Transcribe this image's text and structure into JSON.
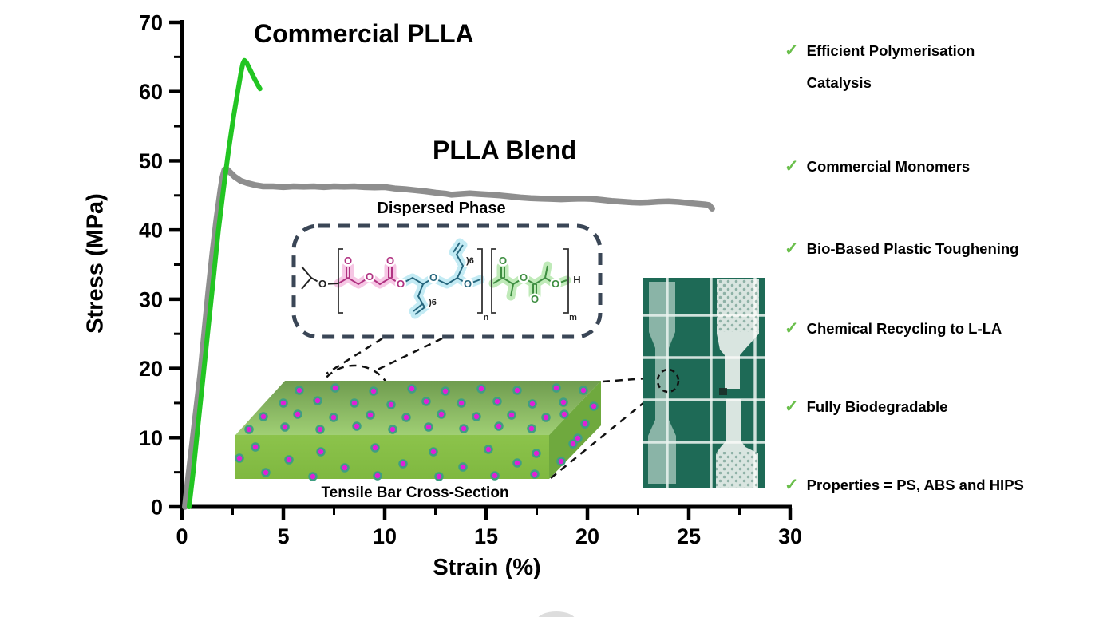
{
  "chart_data": {
    "type": "line",
    "title": "",
    "xlabel": "Strain (%)",
    "ylabel": "Stress (MPa)",
    "xlim": [
      0,
      30
    ],
    "ylim": [
      0,
      70
    ],
    "x_ticks": [
      0,
      5,
      10,
      15,
      20,
      25,
      30
    ],
    "y_ticks": [
      0,
      10,
      20,
      30,
      40,
      50,
      60,
      70
    ],
    "x_minor_step": 2.5,
    "y_minor_step": 5,
    "grid": false,
    "legend_position": "annotations-inside-plot",
    "series": [
      {
        "name": "Commercial PLLA",
        "color": "#22c522",
        "points": [
          [
            0.35,
            0
          ],
          [
            0.55,
            5
          ],
          [
            0.8,
            12
          ],
          [
            1.05,
            19
          ],
          [
            1.3,
            26
          ],
          [
            1.55,
            33
          ],
          [
            1.8,
            40
          ],
          [
            2.05,
            46
          ],
          [
            2.3,
            51.5
          ],
          [
            2.55,
            56.5
          ],
          [
            2.75,
            60
          ],
          [
            2.9,
            62.6
          ],
          [
            3.0,
            64.0
          ],
          [
            3.08,
            64.5
          ],
          [
            3.18,
            64.2
          ],
          [
            3.35,
            63.2
          ],
          [
            3.55,
            62.0
          ],
          [
            3.75,
            60.9
          ],
          [
            3.85,
            60.4
          ]
        ]
      },
      {
        "name": "PLLA Blend",
        "color": "#8e8e8e",
        "points": [
          [
            0.15,
            0
          ],
          [
            0.3,
            4
          ],
          [
            0.5,
            9
          ],
          [
            0.7,
            14
          ],
          [
            0.9,
            19
          ],
          [
            1.1,
            25
          ],
          [
            1.3,
            31
          ],
          [
            1.5,
            36.5
          ],
          [
            1.7,
            41.5
          ],
          [
            1.9,
            45.8
          ],
          [
            2.0,
            47.6
          ],
          [
            2.1,
            48.7
          ],
          [
            2.2,
            48.8
          ],
          [
            2.35,
            48.4
          ],
          [
            2.6,
            47.7
          ],
          [
            2.9,
            47.1
          ],
          [
            3.2,
            46.8
          ],
          [
            3.6,
            46.5
          ],
          [
            4.0,
            46.3
          ],
          [
            4.5,
            46.3
          ],
          [
            5.0,
            46.2
          ],
          [
            5.5,
            46.3
          ],
          [
            6.0,
            46.25
          ],
          [
            6.5,
            46.3
          ],
          [
            7.0,
            46.2
          ],
          [
            7.5,
            46.3
          ],
          [
            8.0,
            46.25
          ],
          [
            8.5,
            46.3
          ],
          [
            9.0,
            46.2
          ],
          [
            9.5,
            46.15
          ],
          [
            10.0,
            46.2
          ],
          [
            10.5,
            46.0
          ],
          [
            11.0,
            45.9
          ],
          [
            11.5,
            45.75
          ],
          [
            12.0,
            45.6
          ],
          [
            12.5,
            45.4
          ],
          [
            13.0,
            45.25
          ],
          [
            13.3,
            45.1
          ],
          [
            13.7,
            45.2
          ],
          [
            14.2,
            45.3
          ],
          [
            14.7,
            45.2
          ],
          [
            15.2,
            45.1
          ],
          [
            15.7,
            45.0
          ],
          [
            16.2,
            44.85
          ],
          [
            16.7,
            44.7
          ],
          [
            17.2,
            44.6
          ],
          [
            17.7,
            44.55
          ],
          [
            18.2,
            44.5
          ],
          [
            18.7,
            44.45
          ],
          [
            19.2,
            44.5
          ],
          [
            19.7,
            44.55
          ],
          [
            20.2,
            44.5
          ],
          [
            20.7,
            44.35
          ],
          [
            21.2,
            44.2
          ],
          [
            21.7,
            44.1
          ],
          [
            22.2,
            44.0
          ],
          [
            22.6,
            43.95
          ],
          [
            23.0,
            44.0
          ],
          [
            23.5,
            44.1
          ],
          [
            24.0,
            44.15
          ],
          [
            24.5,
            44.05
          ],
          [
            25.0,
            43.9
          ],
          [
            25.4,
            43.8
          ],
          [
            25.8,
            43.7
          ],
          [
            26.0,
            43.6
          ],
          [
            26.15,
            43.1
          ]
        ]
      }
    ]
  },
  "inset": {
    "title": "Dispersed Phase",
    "o": "O",
    "h": "H",
    "n": "n",
    "m": "m",
    "chain_sub": ")6",
    "colors": {
      "pink_highlight": "#f6c3e3",
      "cyan_highlight": "#c0eaf3",
      "green_highlight": "#bce9b4"
    }
  },
  "block_caption": "Tensile Bar Cross-Section",
  "illustration": {
    "dot_color": "#e01fd8",
    "dot_ring": "#3f9e82",
    "block_top_dark": "#6f9c4f",
    "block_top_light": "#a0cf74",
    "block_front": "#86bf45",
    "block_side": "#6fa93e",
    "mat_color": "#1e6a56"
  },
  "checklist": {
    "check": "✓",
    "check_color": "#6abf4b",
    "items": [
      {
        "text": "Efficient Polymerisation Catalysis"
      },
      {
        "text": "Commercial Monomers"
      },
      {
        "text": "Bio-Based Plastic Toughening"
      },
      {
        "text": "Chemical Recycling to L-LA"
      },
      {
        "text": "Fully Biodegradable"
      },
      {
        "text": "Properties = PS, ABS and HIPS"
      }
    ]
  }
}
